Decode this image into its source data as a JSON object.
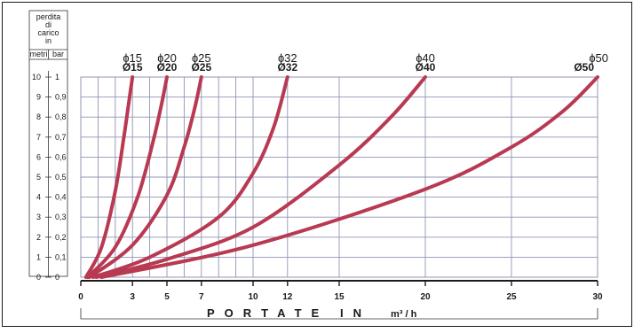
{
  "chart_data": {
    "type": "line",
    "scale_title": [
      "perdita",
      "di",
      "carico",
      "in"
    ],
    "scale_units": {
      "left": "metri",
      "right": "bar"
    },
    "y_left_ticks": [
      "0",
      "1",
      "2",
      "3",
      "4",
      "5",
      "6",
      "7",
      "8",
      "9",
      "10"
    ],
    "y_right_ticks": [
      "0",
      "0,1",
      "0,2",
      "0,3",
      "0,4",
      "0,5",
      "0,6",
      "0,7",
      "0,8",
      "0,9",
      "1"
    ],
    "ylim": [
      0,
      10
    ],
    "xlim": [
      0,
      30
    ],
    "x_ticks": [
      "0",
      "3",
      "5",
      "7",
      "10",
      "12",
      "15",
      "20",
      "25",
      "30"
    ],
    "x_tick_values": [
      0,
      3,
      5,
      7,
      10,
      12,
      15,
      20,
      25,
      30
    ],
    "x_grid": [
      0,
      1,
      2,
      3,
      4,
      5,
      6,
      7,
      8,
      9,
      10,
      12,
      15,
      20,
      25,
      30
    ],
    "xlabel_words": [
      "PORTATE",
      "IN"
    ],
    "xlabel_unit": "m³ / h",
    "series": [
      {
        "name": "ɸ15",
        "alt_label": "Ø15",
        "x": [
          0.3,
          1.2,
          2.0,
          2.5,
          2.8,
          3.0
        ],
        "y": [
          0,
          1.5,
          4.3,
          7.0,
          8.8,
          10
        ]
      },
      {
        "name": "ɸ20",
        "alt_label": "Ø20",
        "x": [
          0.4,
          2.0,
          3.3,
          4.2,
          4.7,
          5.0
        ],
        "y": [
          0,
          1.5,
          4.0,
          6.8,
          8.7,
          10
        ]
      },
      {
        "name": "ɸ25",
        "alt_label": "Ø25",
        "x": [
          0.5,
          3.0,
          5.0,
          6.0,
          6.6,
          7.0
        ],
        "y": [
          0,
          1.6,
          4.1,
          6.5,
          8.4,
          10
        ]
      },
      {
        "name": "ɸ32",
        "alt_label": "Ø32",
        "x": [
          0.7,
          4.0,
          8.0,
          10.0,
          11.2,
          12.0
        ],
        "y": [
          0,
          1.0,
          3.0,
          5.2,
          7.5,
          10
        ]
      },
      {
        "name": "ɸ40",
        "alt_label": "Ø40",
        "x": [
          0.9,
          5.0,
          10.0,
          15.0,
          18.0,
          20.0
        ],
        "y": [
          0,
          0.9,
          2.5,
          5.6,
          8.0,
          10
        ]
      },
      {
        "name": "ɸ50",
        "alt_label": "Ø50",
        "x": [
          1.2,
          10.0,
          20.0,
          25.0,
          28.0,
          30.0
        ],
        "y": [
          0,
          1.6,
          4.4,
          6.5,
          8.3,
          10
        ]
      }
    ],
    "grid": true,
    "colors": {
      "curve": "#b83a52",
      "grid": "#8f95b3",
      "axis": "#1a1a1a"
    }
  }
}
